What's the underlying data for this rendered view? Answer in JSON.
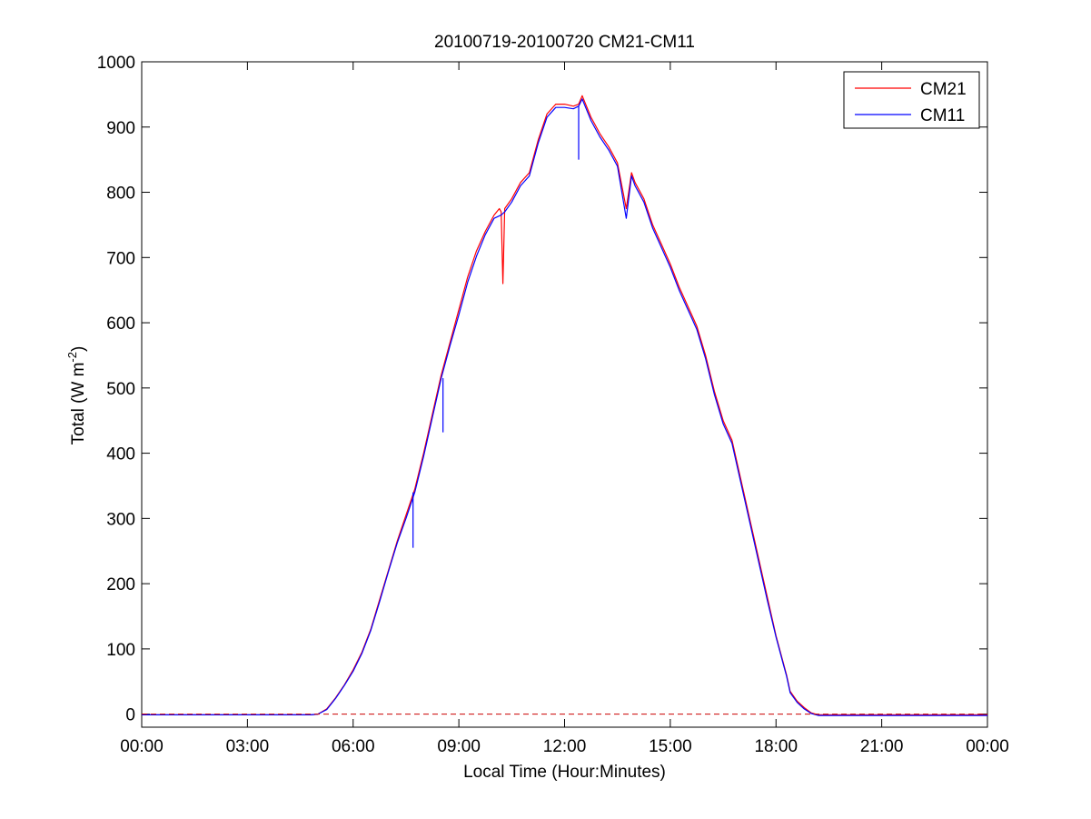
{
  "chart_data": {
    "type": "line",
    "title": "20100719-20100720 CM21-CM11",
    "xlabel": "Local Time (Hour:Minutes)",
    "ylabel": {
      "main": "Total (W m",
      "superscript": "-2",
      "tail": ")"
    },
    "x_unit": "hours",
    "xlim": [
      0,
      24
    ],
    "ylim": [
      -20,
      1000
    ],
    "x_ticks": [
      {
        "value": 0,
        "label": "00:00"
      },
      {
        "value": 3,
        "label": "03:00"
      },
      {
        "value": 6,
        "label": "06:00"
      },
      {
        "value": 9,
        "label": "09:00"
      },
      {
        "value": 12,
        "label": "12:00"
      },
      {
        "value": 15,
        "label": "15:00"
      },
      {
        "value": 18,
        "label": "18:00"
      },
      {
        "value": 21,
        "label": "21:00"
      },
      {
        "value": 24,
        "label": "00:00"
      }
    ],
    "y_ticks": [
      {
        "value": 0,
        "label": "0"
      },
      {
        "value": 100,
        "label": "100"
      },
      {
        "value": 200,
        "label": "200"
      },
      {
        "value": 300,
        "label": "300"
      },
      {
        "value": 400,
        "label": "400"
      },
      {
        "value": 500,
        "label": "500"
      },
      {
        "value": 600,
        "label": "600"
      },
      {
        "value": 700,
        "label": "700"
      },
      {
        "value": 800,
        "label": "800"
      },
      {
        "value": 900,
        "label": "900"
      },
      {
        "value": 1000,
        "label": "1000"
      }
    ],
    "grid": false,
    "legend_position": "top-right",
    "reference_line": {
      "y": 0,
      "color": "#cc0000",
      "style": "dashed"
    },
    "series": [
      {
        "name": "CM21",
        "color": "#ff0000",
        "points": [
          [
            0,
            -1
          ],
          [
            1,
            -1
          ],
          [
            2,
            -1
          ],
          [
            3,
            -1
          ],
          [
            4,
            -1
          ],
          [
            4.8,
            -1
          ],
          [
            5.0,
            0
          ],
          [
            5.25,
            8
          ],
          [
            5.5,
            25
          ],
          [
            5.75,
            45
          ],
          [
            6.0,
            68
          ],
          [
            6.25,
            95
          ],
          [
            6.5,
            130
          ],
          [
            6.75,
            175
          ],
          [
            7.0,
            220
          ],
          [
            7.25,
            265
          ],
          [
            7.5,
            305
          ],
          [
            7.75,
            345
          ],
          [
            8.0,
            400
          ],
          [
            8.25,
            460
          ],
          [
            8.5,
            520
          ],
          [
            8.75,
            570
          ],
          [
            9.0,
            620
          ],
          [
            9.25,
            670
          ],
          [
            9.5,
            710
          ],
          [
            9.75,
            740
          ],
          [
            10.0,
            765
          ],
          [
            10.15,
            775
          ],
          [
            10.2,
            770
          ],
          [
            10.25,
            660
          ],
          [
            10.3,
            775
          ],
          [
            10.5,
            790
          ],
          [
            10.75,
            815
          ],
          [
            11.0,
            830
          ],
          [
            11.25,
            880
          ],
          [
            11.5,
            920
          ],
          [
            11.75,
            935
          ],
          [
            12.0,
            935
          ],
          [
            12.25,
            932
          ],
          [
            12.4,
            935
          ],
          [
            12.5,
            948
          ],
          [
            12.75,
            915
          ],
          [
            13.0,
            890
          ],
          [
            13.25,
            870
          ],
          [
            13.5,
            845
          ],
          [
            13.75,
            775
          ],
          [
            13.9,
            830
          ],
          [
            14.0,
            815
          ],
          [
            14.25,
            790
          ],
          [
            14.5,
            750
          ],
          [
            14.75,
            720
          ],
          [
            15.0,
            690
          ],
          [
            15.25,
            655
          ],
          [
            15.5,
            625
          ],
          [
            15.75,
            595
          ],
          [
            16.0,
            550
          ],
          [
            16.25,
            495
          ],
          [
            16.5,
            450
          ],
          [
            16.75,
            420
          ],
          [
            17.0,
            360
          ],
          [
            17.25,
            300
          ],
          [
            17.5,
            240
          ],
          [
            17.75,
            180
          ],
          [
            18.0,
            120
          ],
          [
            18.2,
            80
          ],
          [
            18.3,
            60
          ],
          [
            18.4,
            35
          ],
          [
            18.6,
            20
          ],
          [
            18.8,
            10
          ],
          [
            19.0,
            2
          ],
          [
            19.2,
            -1
          ],
          [
            19.5,
            -1
          ],
          [
            20,
            -1
          ],
          [
            21,
            -1
          ],
          [
            22,
            -1
          ],
          [
            23,
            -1
          ],
          [
            24,
            -1
          ]
        ]
      },
      {
        "name": "CM11",
        "color": "#0000ff",
        "points": [
          [
            0,
            -1
          ],
          [
            1,
            -1
          ],
          [
            2,
            -1
          ],
          [
            3,
            -1
          ],
          [
            4,
            -1
          ],
          [
            4.8,
            -1
          ],
          [
            5.0,
            0
          ],
          [
            5.25,
            7
          ],
          [
            5.5,
            24
          ],
          [
            5.75,
            44
          ],
          [
            6.0,
            66
          ],
          [
            6.25,
            93
          ],
          [
            6.5,
            128
          ],
          [
            6.75,
            172
          ],
          [
            7.0,
            218
          ],
          [
            7.25,
            262
          ],
          [
            7.5,
            300
          ],
          [
            7.75,
            340
          ],
          [
            8.0,
            395
          ],
          [
            8.25,
            455
          ],
          [
            8.5,
            515
          ],
          [
            8.75,
            565
          ],
          [
            9.0,
            612
          ],
          [
            9.25,
            662
          ],
          [
            9.5,
            702
          ],
          [
            9.75,
            735
          ],
          [
            10.0,
            760
          ],
          [
            10.2,
            765
          ],
          [
            10.3,
            770
          ],
          [
            10.5,
            785
          ],
          [
            10.75,
            810
          ],
          [
            11.0,
            825
          ],
          [
            11.25,
            875
          ],
          [
            11.5,
            915
          ],
          [
            11.75,
            930
          ],
          [
            12.0,
            930
          ],
          [
            12.25,
            928
          ],
          [
            12.4,
            932
          ],
          [
            12.5,
            943
          ],
          [
            12.75,
            910
          ],
          [
            13.0,
            885
          ],
          [
            13.25,
            865
          ],
          [
            13.5,
            840
          ],
          [
            13.75,
            760
          ],
          [
            13.9,
            825
          ],
          [
            14.0,
            810
          ],
          [
            14.25,
            785
          ],
          [
            14.5,
            745
          ],
          [
            14.75,
            715
          ],
          [
            15.0,
            685
          ],
          [
            15.25,
            650
          ],
          [
            15.5,
            620
          ],
          [
            15.75,
            590
          ],
          [
            16.0,
            545
          ],
          [
            16.25,
            490
          ],
          [
            16.5,
            445
          ],
          [
            16.75,
            415
          ],
          [
            17.0,
            355
          ],
          [
            17.25,
            295
          ],
          [
            17.5,
            235
          ],
          [
            17.75,
            175
          ],
          [
            18.0,
            118
          ],
          [
            18.2,
            78
          ],
          [
            18.3,
            58
          ],
          [
            18.4,
            33
          ],
          [
            18.6,
            18
          ],
          [
            18.8,
            8
          ],
          [
            19.0,
            1
          ],
          [
            19.2,
            -2
          ],
          [
            19.5,
            -2
          ],
          [
            20,
            -2
          ],
          [
            21,
            -2
          ],
          [
            22,
            -2
          ],
          [
            23,
            -2
          ],
          [
            24,
            -2
          ]
        ],
        "dips": [
          [
            7.7,
            255
          ],
          [
            8.55,
            432
          ],
          [
            12.4,
            850
          ]
        ]
      }
    ]
  }
}
